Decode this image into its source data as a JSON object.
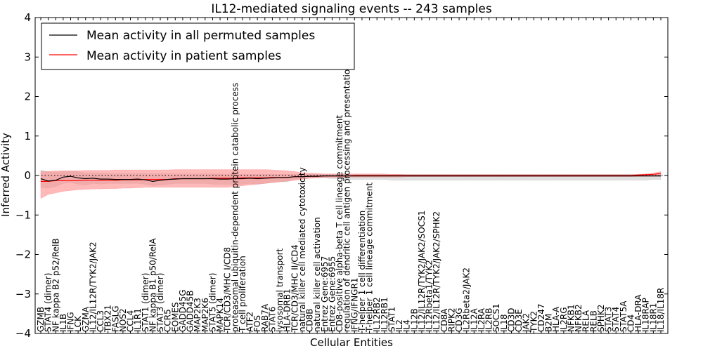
{
  "chart_data": {
    "type": "line",
    "title": "IL12-mediated signaling events -- 243 samples",
    "xlabel": "Cellular Entities",
    "ylabel": "Inferred Activity",
    "ylim": [
      -4,
      4
    ],
    "yticks": [
      -4,
      -3,
      -2,
      -1,
      0,
      1,
      2,
      3,
      4
    ],
    "ytick_labels": [
      "−4",
      "−3",
      "−2",
      "−1",
      "0",
      "1",
      "2",
      "3",
      "4"
    ],
    "legend_position": "top-left",
    "reference_line": 0,
    "categories": [
      "GZMB",
      "STAT4 (dimer)",
      "NF kappa B2 p52/RelB",
      "IL1B",
      "IFNG",
      "LCK",
      "GZMA",
      "IL12/IL12R/TYK2/JAK2",
      "CCL3",
      "TBX21",
      "FASLG",
      "NOS2",
      "CCL4",
      "IL1R1",
      "STAT1 (dimer)",
      "NF kappa B1 p50/RelA",
      "STAT3 (dimer)",
      "CCR5",
      "EOMES",
      "GADD45G",
      "GADD45B",
      "MAP2K3",
      "MAP2K6",
      "STAT5 (dimer)",
      "MAPK14",
      "TCR/CD3/MHC I/CD8",
      "proteasomal ubiquitin-dependent protein catabolic process",
      "T cell proliferation",
      "ATF2",
      "FOS",
      "RAB7A",
      "STAT6",
      "lysosomal transport",
      "HLA-DRB1",
      "TCR/CD3/MHC II/CD4",
      "natural killer cell mediated cytotoxicity",
      "CD8B",
      "natural killer cell activation",
      "Entrez Gene:6957",
      "Entrez Gene:6955",
      "CD8-positive alpha-beta T cell lineage commitment",
      "regulation of dendritic cell antigen processing and presentation",
      "IFNG/IFNGR1",
      "T-helper 1 cell differentiation",
      "T-helper 1 cell lineage commitment",
      "IL12RB2",
      "IL12RB1",
      "STAT1",
      "IL2",
      "IL4",
      "IL12B",
      "IL12/IL12R/TYK2/JAK2/SOCS1",
      "IL12Rbeta1/TYK2",
      "IL12/IL12R/TYK2/JAK2/SPHK2",
      "CD8A",
      "RIPK2",
      "CD3G",
      "IL2Rbeta2/JAK2",
      "IL12A",
      "IL2RA",
      "IL2RB",
      "SOCS1",
      "IL18",
      "CD3D",
      "CD3E",
      "JAK2",
      "TYK2",
      "CD247",
      "B2M",
      "HLA-A",
      "IL2RG",
      "NFKB1",
      "NFKB2",
      "RELA",
      "RELB",
      "SPHK2",
      "STAT3",
      "STAT4",
      "STAT5A",
      "CD4",
      "HLA-DRA",
      "IL18RAP",
      "IL18R1",
      "IL18/IL18R"
    ],
    "series": [
      {
        "name": "Mean activity in all permuted samples",
        "color": "#000000",
        "values": [
          -0.08,
          -0.14,
          -0.12,
          -0.04,
          -0.02,
          -0.06,
          -0.08,
          -0.07,
          -0.09,
          -0.09,
          -0.1,
          -0.1,
          -0.1,
          -0.09,
          -0.11,
          -0.15,
          -0.12,
          -0.1,
          -0.09,
          -0.08,
          -0.08,
          -0.08,
          -0.08,
          -0.08,
          -0.09,
          -0.09,
          -0.08,
          -0.08,
          -0.07,
          -0.08,
          -0.07,
          -0.06,
          -0.05,
          -0.05,
          -0.03,
          -0.03,
          -0.02,
          -0.02,
          -0.01,
          -0.01,
          -0.01,
          -0.01,
          -0.01,
          -0.01,
          -0.01,
          -0.01,
          -0.01,
          -0.01,
          -0.01,
          -0.01,
          -0.01,
          -0.01,
          -0.01,
          -0.01,
          -0.01,
          -0.01,
          -0.01,
          -0.01,
          -0.01,
          -0.01,
          -0.01,
          -0.01,
          -0.01,
          -0.01,
          -0.01,
          -0.01,
          -0.01,
          -0.01,
          -0.01,
          -0.01,
          -0.01,
          -0.01,
          -0.01,
          -0.01,
          -0.01,
          -0.01,
          -0.01,
          -0.01,
          -0.01,
          -0.01,
          -0.01,
          -0.01,
          -0.01,
          -0.01
        ],
        "band": {
          "color": "#bbbbbb",
          "upper": [
            0.14,
            0.1,
            0.08,
            0.1,
            0.1,
            0.1,
            0.06,
            0.06,
            0.06,
            0.05,
            0.05,
            0.05,
            0.05,
            0.06,
            0.05,
            0.05,
            0.05,
            0.05,
            0.04,
            0.04,
            0.04,
            0.04,
            0.04,
            0.04,
            0.04,
            0.03,
            0.03,
            0.03,
            0.03,
            0.03,
            0.03,
            0.03,
            0.03,
            0.03,
            0.03,
            0.03,
            0.03,
            0.03,
            0.03,
            0.03,
            0.03,
            0.03,
            0.03,
            0.03,
            0.03,
            0.03,
            0.03,
            0.03,
            0.03,
            0.03,
            0.03,
            0.03,
            0.03,
            0.03,
            0.03,
            0.03,
            0.03,
            0.03,
            0.03,
            0.03,
            0.03,
            0.03,
            0.03,
            0.03,
            0.03,
            0.03,
            0.03,
            0.03,
            0.03,
            0.03,
            0.03,
            0.03,
            0.03,
            0.03,
            0.03,
            0.03,
            0.03,
            0.03,
            0.03,
            0.03,
            0.03,
            0.03,
            0.03,
            0.03
          ],
          "lower": [
            -0.3,
            -0.32,
            -0.28,
            -0.2,
            -0.18,
            -0.22,
            -0.24,
            -0.2,
            -0.22,
            -0.2,
            -0.2,
            -0.2,
            -0.2,
            -0.2,
            -0.22,
            -0.26,
            -0.24,
            -0.22,
            -0.2,
            -0.2,
            -0.2,
            -0.2,
            -0.2,
            -0.22,
            -0.22,
            -0.22,
            -0.22,
            -0.22,
            -0.2,
            -0.22,
            -0.2,
            -0.18,
            -0.16,
            -0.16,
            -0.1,
            -0.08,
            -0.06,
            -0.06,
            -0.06,
            -0.08,
            -0.08,
            -0.1,
            -0.1,
            -0.1,
            -0.1,
            -0.1,
            -0.1,
            -0.12,
            -0.12,
            -0.12,
            -0.12,
            -0.12,
            -0.12,
            -0.12,
            -0.12,
            -0.12,
            -0.12,
            -0.12,
            -0.12,
            -0.12,
            -0.12,
            -0.12,
            -0.12,
            -0.12,
            -0.12,
            -0.12,
            -0.12,
            -0.12,
            -0.12,
            -0.12,
            -0.12,
            -0.12,
            -0.12,
            -0.12,
            -0.12,
            -0.12,
            -0.12,
            -0.12,
            -0.12,
            -0.12,
            -0.12,
            -0.12,
            -0.1,
            -0.1
          ]
        }
      },
      {
        "name": "Mean activity in patient samples",
        "color": "#ff0000",
        "values": [
          -0.15,
          -0.15,
          -0.13,
          -0.13,
          -0.13,
          -0.13,
          -0.12,
          -0.12,
          -0.12,
          -0.12,
          -0.12,
          -0.11,
          -0.11,
          -0.11,
          -0.1,
          -0.1,
          -0.1,
          -0.1,
          -0.08,
          -0.08,
          -0.08,
          -0.08,
          -0.08,
          -0.07,
          -0.07,
          -0.07,
          -0.07,
          -0.06,
          -0.06,
          -0.06,
          -0.06,
          -0.05,
          -0.05,
          -0.05,
          -0.03,
          -0.03,
          -0.02,
          -0.02,
          -0.01,
          -0.01,
          -0.01,
          -0.01,
          0,
          0,
          0,
          0,
          0,
          0,
          0,
          0,
          0,
          0,
          0,
          0,
          0,
          0,
          0,
          0,
          0,
          0,
          0,
          0,
          0,
          0,
          0,
          0,
          0,
          0,
          0,
          0,
          0,
          0,
          0,
          0,
          0,
          0,
          0,
          0,
          0,
          0,
          0.01,
          0.02,
          0.03,
          0.05
        ],
        "band": {
          "color": "#ff8080",
          "upper": [
            0.1,
            0.1,
            0.12,
            0.12,
            0.12,
            0.12,
            0.13,
            0.13,
            0.13,
            0.13,
            0.14,
            0.14,
            0.14,
            0.14,
            0.14,
            0.14,
            0.14,
            0.14,
            0.15,
            0.15,
            0.15,
            0.15,
            0.15,
            0.15,
            0.15,
            0.15,
            0.15,
            0.15,
            0.15,
            0.15,
            0.15,
            0.14,
            0.13,
            0.12,
            0.1,
            0.07,
            0.06,
            0.05,
            0.04,
            0.04,
            0.04,
            0.04,
            0.04,
            0.04,
            0.04,
            0.04,
            0.04,
            0.03,
            0.03,
            0.02,
            0.02,
            0.02,
            0.02,
            0.02,
            0.02,
            0.02,
            0.02,
            0.02,
            0.02,
            0.02,
            0.02,
            0.02,
            0.02,
            0.02,
            0.02,
            0.02,
            0.02,
            0.02,
            0.02,
            0.02,
            0.02,
            0.02,
            0.02,
            0.02,
            0.02,
            0.02,
            0.02,
            0.02,
            0.02,
            0.02,
            0.03,
            0.04,
            0.06,
            0.1
          ],
          "lower": [
            -0.58,
            -0.48,
            -0.44,
            -0.4,
            -0.38,
            -0.36,
            -0.35,
            -0.34,
            -0.34,
            -0.33,
            -0.33,
            -0.32,
            -0.32,
            -0.31,
            -0.3,
            -0.3,
            -0.3,
            -0.3,
            -0.3,
            -0.3,
            -0.3,
            -0.3,
            -0.3,
            -0.3,
            -0.3,
            -0.3,
            -0.28,
            -0.26,
            -0.24,
            -0.22,
            -0.2,
            -0.18,
            -0.16,
            -0.14,
            -0.12,
            -0.1,
            -0.07,
            -0.06,
            -0.05,
            -0.04,
            -0.04,
            -0.04,
            -0.04,
            -0.04,
            -0.04,
            -0.04,
            -0.04,
            -0.04,
            -0.04,
            -0.03,
            -0.03,
            -0.03,
            -0.03,
            -0.03,
            -0.03,
            -0.03,
            -0.03,
            -0.03,
            -0.03,
            -0.03,
            -0.03,
            -0.03,
            -0.03,
            -0.03,
            -0.03,
            -0.03,
            -0.03,
            -0.03,
            -0.03,
            -0.03,
            -0.03,
            -0.03,
            -0.03,
            -0.03,
            -0.03,
            -0.03,
            -0.03,
            -0.03,
            -0.03,
            -0.03,
            -0.02,
            -0.02,
            -0.02,
            -0.02
          ]
        }
      }
    ]
  }
}
